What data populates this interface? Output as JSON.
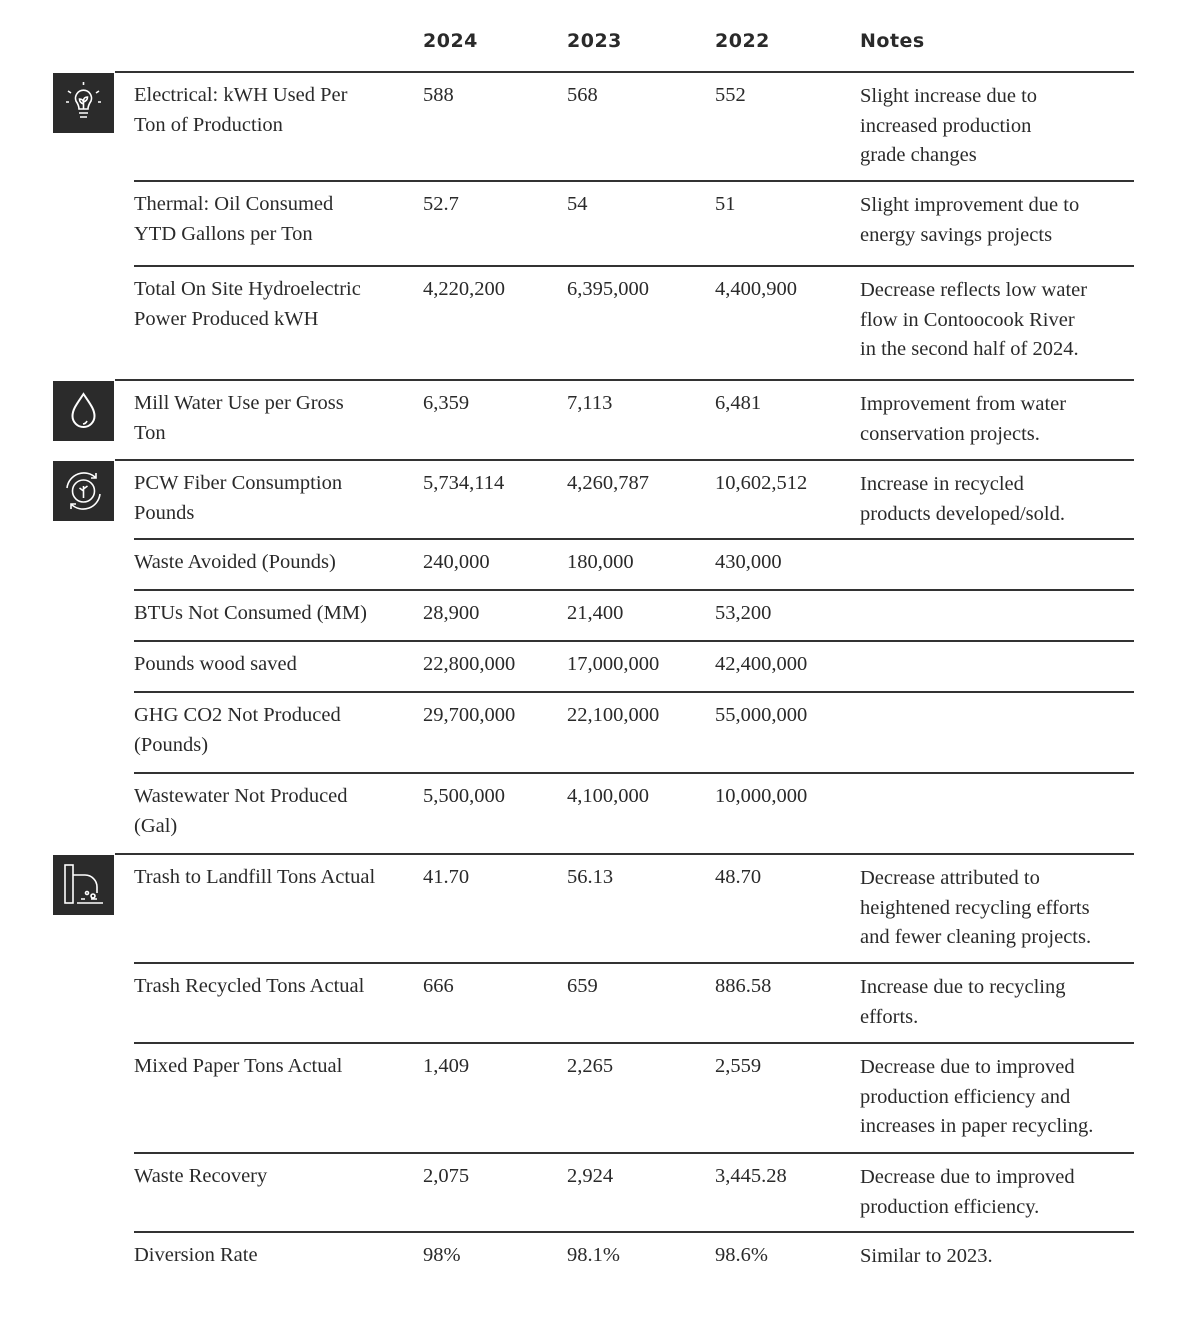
{
  "table": {
    "header": [
      "2024",
      "2023",
      "2022",
      "Notes"
    ],
    "rows": [
      {
        "label": [
          "Electrical:  kWH Used Per",
          "Ton of Production"
        ],
        "values": [
          "588",
          "568",
          "552"
        ],
        "note": [
          "Slight increase due to",
          "increased production",
          "grade changes"
        ]
      },
      {
        "label": [
          "Thermal: Oil Consumed",
          "YTD Gallons per Ton"
        ],
        "values": [
          "52.7",
          "54",
          "51"
        ],
        "note": [
          "Slight improvement due to",
          "energy savings projects"
        ]
      },
      {
        "label": [
          "Total On Site Hydroelectric",
          "Power Produced kWH"
        ],
        "values": [
          "4,220,200",
          "6,395,000",
          "4,400,900"
        ],
        "note": [
          "Decrease reflects low water",
          "flow in Contoocook River",
          "in the second half of 2024."
        ]
      },
      {
        "label": [
          "Mill Water Use per Gross",
          "Ton"
        ],
        "values": [
          "6,359",
          "7,113",
          "6,481"
        ],
        "note": [
          "Improvement from water",
          "conservation projects."
        ]
      },
      {
        "label": [
          "PCW Fiber Consumption",
          "Pounds"
        ],
        "values": [
          "5,734,114",
          "4,260,787",
          "10,602,512"
        ],
        "note": [
          "Increase in recycled",
          "products developed/sold."
        ]
      },
      {
        "label": [
          "Waste Avoided (Pounds)"
        ],
        "values": [
          "240,000",
          "180,000",
          "430,000"
        ],
        "note": []
      },
      {
        "label": [
          "BTUs Not Consumed (MM)"
        ],
        "values": [
          "28,900",
          "21,400",
          "53,200"
        ],
        "note": []
      },
      {
        "label": [
          "Pounds wood saved"
        ],
        "values": [
          "22,800,000",
          "17,000,000",
          "42,400,000"
        ],
        "note": []
      },
      {
        "label": [
          "GHG CO2 Not Produced",
          "(Pounds)"
        ],
        "values": [
          "29,700,000",
          "22,100,000",
          "55,000,000"
        ],
        "note": []
      },
      {
        "label": [
          "Wastewater Not Produced",
          "(Gal)"
        ],
        "values": [
          "5,500,000",
          "4,100,000",
          "10,000,000"
        ],
        "note": []
      },
      {
        "label": [
          "Trash to Landfill Tons Actual"
        ],
        "values": [
          "41.70",
          "56.13",
          "48.70"
        ],
        "note": [
          "Decrease attributed to",
          "heightened recycling efforts",
          "and fewer cleaning projects."
        ]
      },
      {
        "label": [
          "Trash Recycled Tons Actual"
        ],
        "values": [
          "666",
          "659",
          "886.58"
        ],
        "note": [
          "Increase due to recycling",
          "efforts."
        ]
      },
      {
        "label": [
          "Mixed Paper Tons Actual"
        ],
        "values": [
          "1,409",
          "2,265",
          "2,559"
        ],
        "note": [
          "Decrease due to improved",
          "production efficiency and",
          "increases in paper recycling."
        ]
      },
      {
        "label": [
          "Waste Recovery"
        ],
        "values": [
          "2,075",
          "2,924",
          "3,445.28"
        ],
        "note": [
          "Decrease due to improved",
          "production efficiency."
        ]
      },
      {
        "label": [
          "Diversion Rate"
        ],
        "values": [
          "98%",
          "98.1%",
          "98.6%"
        ],
        "note": [
          "Similar to 2023."
        ]
      }
    ]
  }
}
